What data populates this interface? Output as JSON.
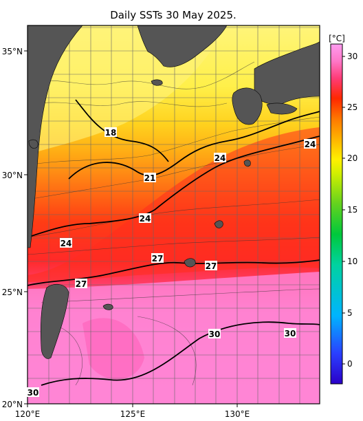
{
  "title": "Daily SSTs 30 May 2025.",
  "lat_labels": [
    "35°N",
    "30°N",
    "25°N",
    "20°N"
  ],
  "lon_labels": [
    "120°E",
    "125°E",
    "130°E"
  ],
  "colorbar": {
    "unit": "[°C]",
    "min": -2,
    "max": 32,
    "ticks": [
      "30",
      "25",
      "20",
      "15",
      "10",
      "5",
      "0"
    ],
    "colors": [
      "#2a00c8",
      "#2a40ff",
      "#00c8ff",
      "#00d2a0",
      "#00c83c",
      "#64d21e",
      "#d2f000",
      "#fff000",
      "#ffb400",
      "#ff7800",
      "#ff2800",
      "#ff3c78",
      "#ff78c8",
      "#ff9cf0"
    ]
  },
  "contour_labels": [
    "18",
    "21",
    "24",
    "24",
    "24",
    "24",
    "27",
    "27",
    "27",
    "30",
    "30",
    "30"
  ],
  "land_color": "#555555",
  "isotherms": [
    "18",
    "21",
    "24",
    "27",
    "30"
  ]
}
